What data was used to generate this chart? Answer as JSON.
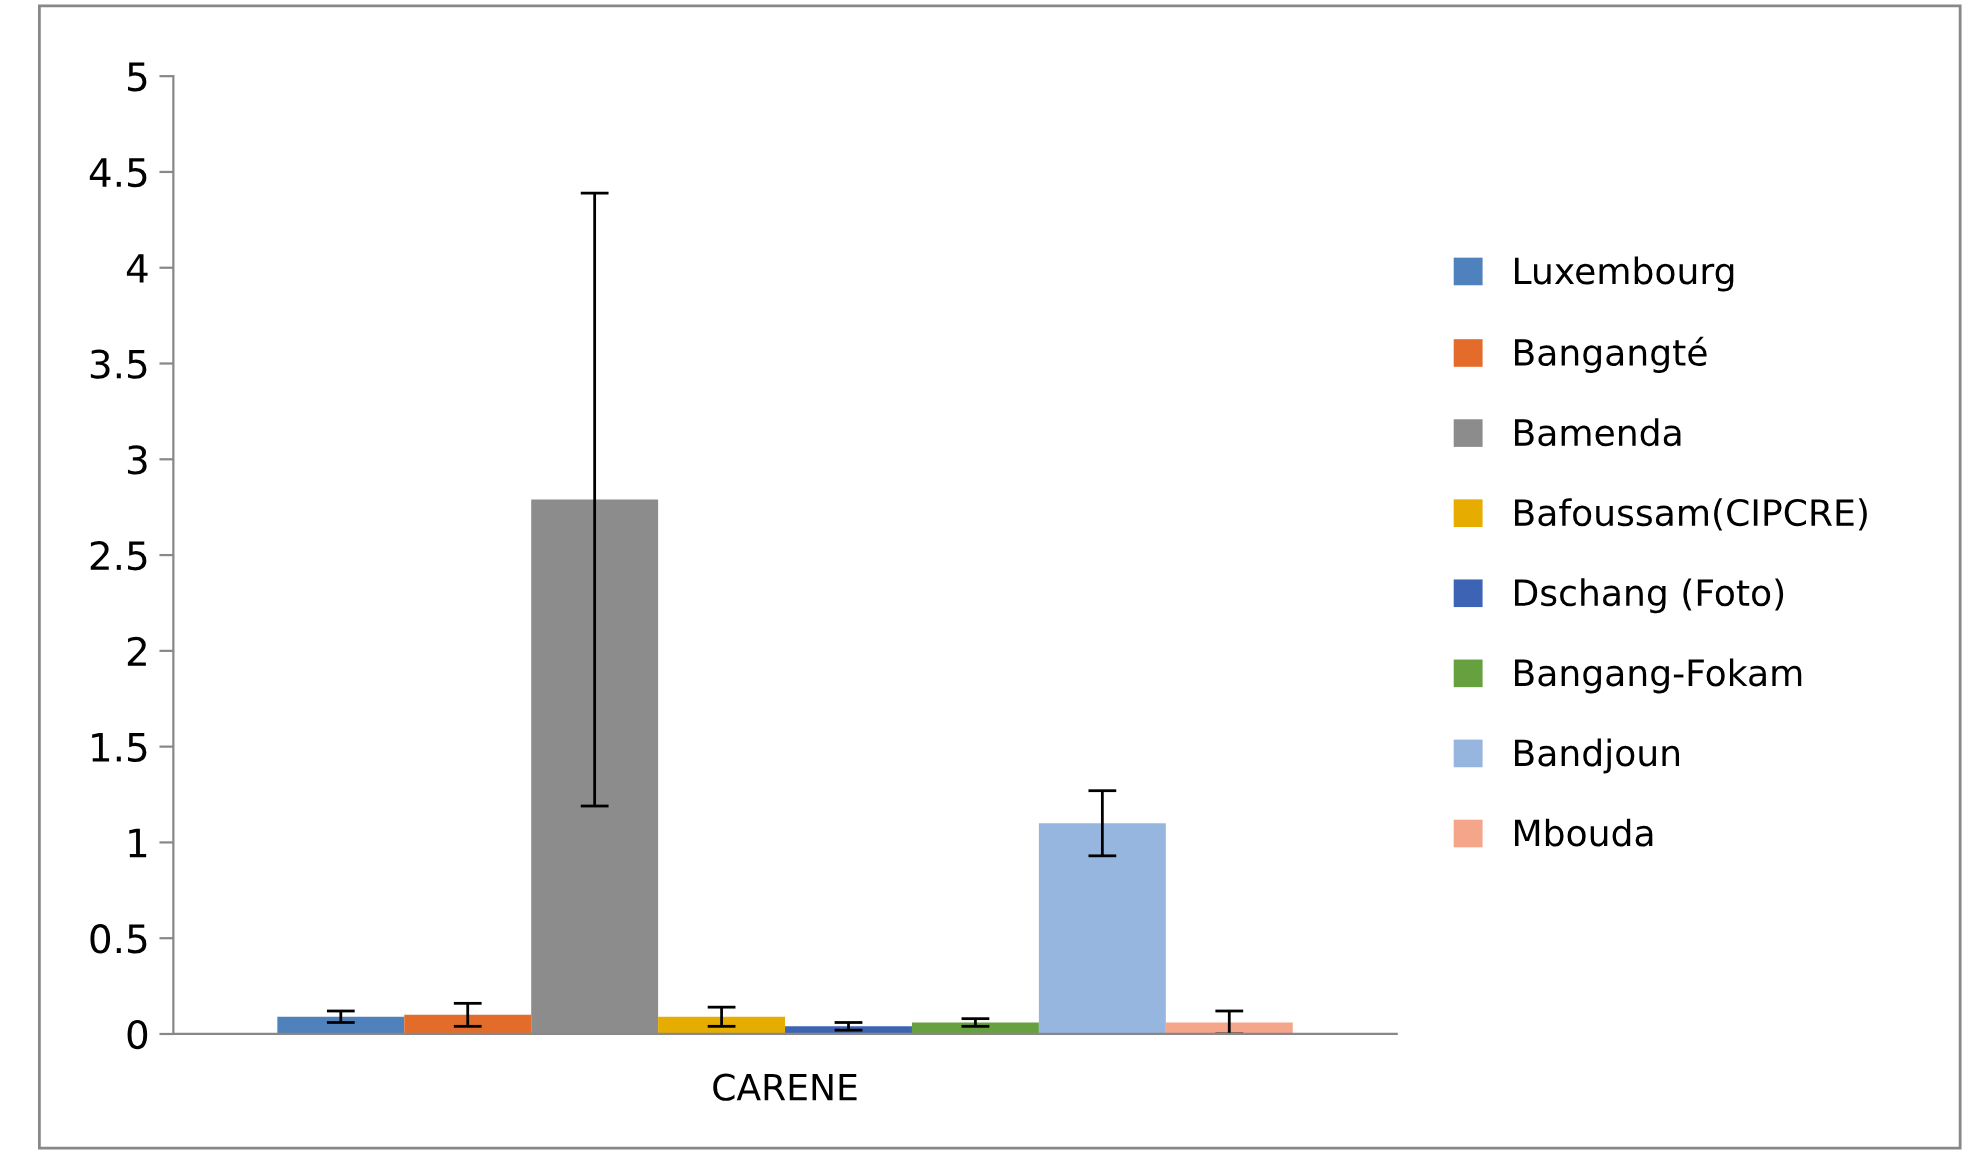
{
  "chart_data": {
    "type": "bar",
    "categories": [
      "CARENE"
    ],
    "series": [
      {
        "name": "Luxembourg",
        "color": "#4f81bd",
        "values": [
          0.09
        ],
        "errors": [
          0.03
        ]
      },
      {
        "name": "Bangangté",
        "color": "#e46c2b",
        "values": [
          0.1
        ],
        "errors": [
          0.06
        ]
      },
      {
        "name": "Bamenda",
        "color": "#8c8c8c",
        "values": [
          2.79
        ],
        "errors": [
          1.6
        ]
      },
      {
        "name": "Bafoussam(CIPCRE)",
        "color": "#e6ac00",
        "values": [
          0.09
        ],
        "errors": [
          0.05
        ]
      },
      {
        "name": "Dschang (Foto)",
        "color": "#3d63b5",
        "values": [
          0.04
        ],
        "errors": [
          0.02
        ]
      },
      {
        "name": "Bangang-Fokam",
        "color": "#66a03f",
        "values": [
          0.06
        ],
        "errors": [
          0.02
        ]
      },
      {
        "name": "Bandjoun",
        "color": "#96b6df",
        "values": [
          1.1
        ],
        "errors": [
          0.17
        ]
      },
      {
        "name": "Mbouda",
        "color": "#f4a58a",
        "values": [
          0.06
        ],
        "errors": [
          0.06
        ]
      }
    ],
    "ylim": [
      0,
      5
    ],
    "yticks": [
      0,
      0.5,
      1,
      1.5,
      2,
      2.5,
      3,
      3.5,
      4,
      4.5,
      5
    ],
    "grid": false,
    "legend": "right"
  }
}
